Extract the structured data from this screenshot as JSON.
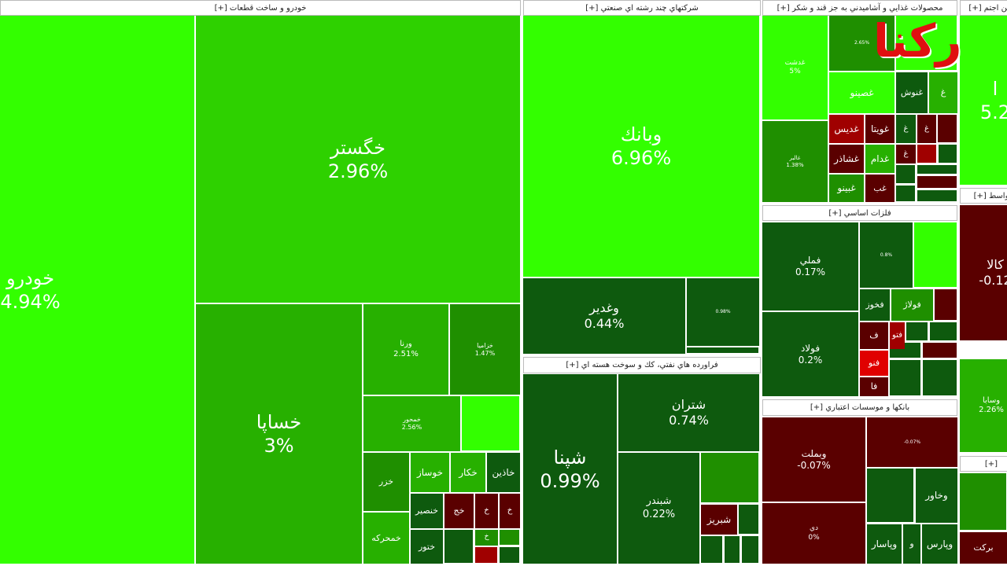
{
  "logo": "ركنا",
  "sectors": [
    {
      "title": "خودرو و ساخت قطعات [+]",
      "tiles": [
        {
          "name": "خودرو",
          "change": "4.94%"
        },
        {
          "name": "خگستر",
          "change": "2.96%"
        },
        {
          "name": "خساپا",
          "change": "3%"
        },
        {
          "name": "ورنا",
          "change": "2.51%"
        },
        {
          "name": "خزامیا",
          "change": "1.47%"
        },
        {
          "name": "خمحور",
          "change": "2.56%"
        },
        {
          "name": "خزر"
        },
        {
          "name": "خمحرکه"
        },
        {
          "name": "خوساز"
        },
        {
          "name": "خکار"
        },
        {
          "name": "خاذین"
        },
        {
          "name": "خنصیر"
        },
        {
          "name": "خج"
        },
        {
          "name": "خ"
        },
        {
          "name": "خ"
        },
        {
          "name": "ختور"
        },
        {
          "name": "خ"
        }
      ]
    },
    {
      "title": "شركتهاي چند رشته اي صنعتي [+]",
      "tiles": [
        {
          "name": "وبانك",
          "change": "6.96%"
        },
        {
          "name": "وغدير",
          "change": "0.44%"
        },
        {
          "change": "0.98%"
        }
      ]
    },
    {
      "title": "فراورده هاي نفتي، كك و سوخت هسته اي [+]",
      "tiles": [
        {
          "name": "شپنا",
          "change": "0.99%"
        },
        {
          "name": "شتران",
          "change": "0.74%"
        },
        {
          "name": "شبندر",
          "change": "0.22%"
        },
        {
          "name": "شبريز"
        }
      ]
    },
    {
      "title": "محصولات غذايي و آشاميدني به جز قند و شكر [+]",
      "tiles": [
        {
          "name": "غدشت",
          "change": "5%"
        },
        {
          "name": "غالبر",
          "change": "1.38%"
        },
        {
          "change": "2.65%"
        },
        {
          "name": "غصينو"
        },
        {
          "name": "غنوش"
        },
        {
          "name": "غ"
        },
        {
          "name": "غديس"
        },
        {
          "name": "غويتا"
        },
        {
          "name": "غ"
        },
        {
          "name": "غ"
        },
        {
          "name": "غشاذر"
        },
        {
          "name": "غدام"
        },
        {
          "name": "غ"
        },
        {
          "name": "غبينو"
        },
        {
          "name": "غب"
        }
      ]
    },
    {
      "title": "فلزات اساسي [+]",
      "tiles": [
        {
          "name": "فملي",
          "change": "0.17%"
        },
        {
          "name": "فولاد",
          "change": "0.2%"
        },
        {
          "change": "0.8%"
        },
        {
          "name": "فخوز"
        },
        {
          "name": "فولاژ"
        },
        {
          "name": "ف"
        },
        {
          "name": "فتو"
        },
        {
          "name": "فنو"
        },
        {
          "name": "فا"
        }
      ]
    },
    {
      "title": "بانكها و موسسات اعتباري [+]",
      "tiles": [
        {
          "name": "وبملت",
          "change": "-0.07%"
        },
        {
          "change": "-0.07%"
        },
        {
          "name": "وخاور"
        },
        {
          "name": "دي",
          "change": "0%"
        },
        {
          "name": "وپاسار"
        },
        {
          "name": "و"
        },
        {
          "name": "وپارس"
        }
      ]
    },
    {
      "title": "مين اجتم [+]",
      "tiles": [
        {
          "name": "ا",
          "change": "5.2"
        }
      ]
    },
    {
      "title": "واسط [+]",
      "tiles": [
        {
          "name": "كالا",
          "change": "-0.12"
        },
        {
          "name": "وسابا",
          "change": "2.26%"
        }
      ]
    },
    {
      "title": "[+]",
      "tiles": [
        {
          "name": "بركت"
        }
      ]
    }
  ]
}
